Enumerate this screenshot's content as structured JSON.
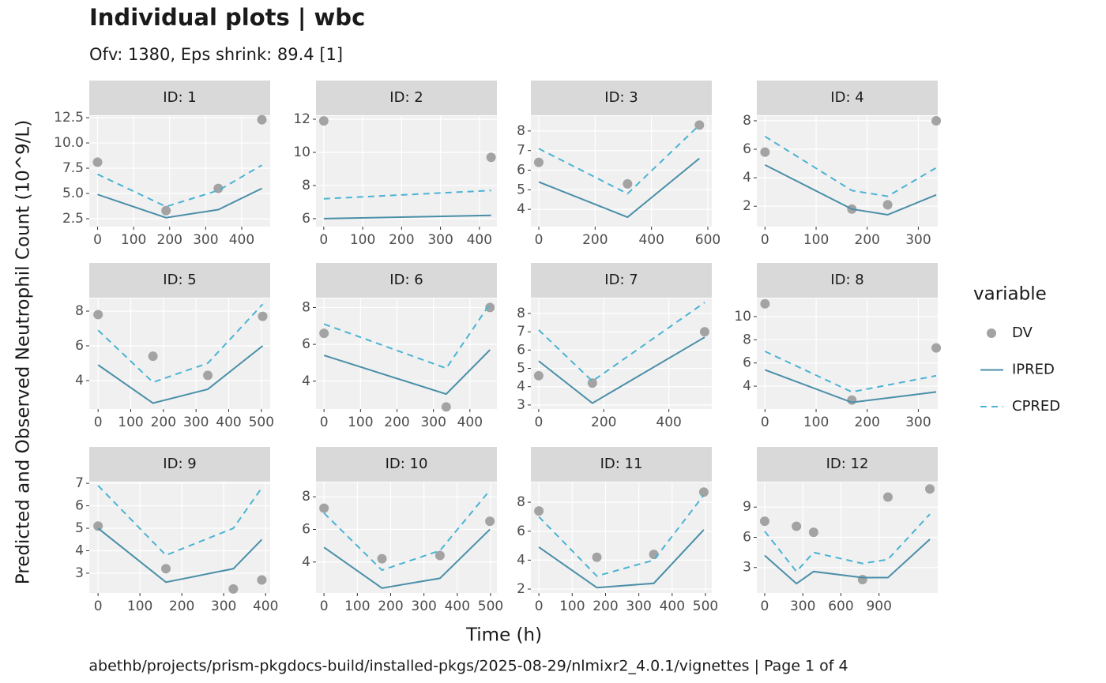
{
  "title": "Individual plots | wbc",
  "subtitle": "Ofv: 1380, Eps shrink: 89.4 [1]",
  "x_label": "Time (h)",
  "y_label": "Predicted and Observed Neutrophil Count (10^9/L)",
  "caption": "abethb/projects/prism-pkgdocs-build/installed-pkgs/2025-08-29/nlmixr2_4.0.1/vignettes | Page 1 of 4",
  "legend": {
    "title": "variable",
    "position": "right"
  },
  "chart_data": [
    {
      "type": "line",
      "title": "ID: 1",
      "grid": true,
      "x": [
        0,
        190,
        335,
        456
      ],
      "xlim": [
        -23,
        479
      ],
      "xticks": [
        0,
        100,
        200,
        300,
        400
      ],
      "ylim": [
        1.72,
        12.66
      ],
      "yticks": [
        2.5,
        {
          "value": 5,
          "label": "5.0"
        },
        7.5,
        {
          "value": 10,
          "label": "10.0"
        },
        12.5
      ],
      "series": [
        {
          "name": "DV",
          "color": "#a3a3a3",
          "style": "points",
          "values": [
            8.1,
            3.3,
            5.5,
            12.3
          ]
        },
        {
          "name": "IPRED",
          "color": "#4a8fa8",
          "style": "solid",
          "values": [
            4.9,
            2.6,
            3.4,
            5.5
          ]
        },
        {
          "name": "CPRED",
          "color": "#4ab3d4",
          "style": "dashed",
          "values": [
            6.9,
            3.7,
            5.3,
            7.8
          ]
        }
      ]
    },
    {
      "type": "line",
      "title": "ID: 2",
      "grid": true,
      "x": [
        0,
        430
      ],
      "xlim": [
        -20,
        445
      ],
      "xticks": [
        0,
        100,
        200,
        300,
        400
      ],
      "ylim": [
        5.52,
        12.19
      ],
      "yticks": [
        6,
        8,
        10,
        12
      ],
      "series": [
        {
          "name": "DV",
          "color": "#a3a3a3",
          "style": "points",
          "values": [
            11.9,
            9.7
          ]
        },
        {
          "name": "IPRED",
          "color": "#4a8fa8",
          "style": "solid",
          "values": [
            6.0,
            6.2
          ]
        },
        {
          "name": "CPRED",
          "color": "#4ab3d4",
          "style": "dashed",
          "values": [
            7.2,
            7.7
          ]
        }
      ]
    },
    {
      "type": "line",
      "title": "ID: 3",
      "grid": true,
      "x": [
        0,
        315,
        570
      ],
      "xlim": [
        -28,
        614
      ],
      "xticks": [
        0,
        200,
        400,
        600
      ],
      "ylim": [
        3.12,
        8.76
      ],
      "yticks": [
        4,
        5,
        6,
        7,
        8
      ],
      "series": [
        {
          "name": "DV",
          "color": "#a3a3a3",
          "style": "points",
          "values": [
            6.4,
            5.3,
            8.3
          ]
        },
        {
          "name": "IPRED",
          "color": "#4a8fa8",
          "style": "solid",
          "values": [
            5.4,
            3.6,
            6.6
          ]
        },
        {
          "name": "CPRED",
          "color": "#4ab3d4",
          "style": "dashed",
          "values": [
            7.1,
            4.8,
            8.3
          ]
        }
      ]
    },
    {
      "type": "line",
      "title": "ID: 4",
      "grid": true,
      "x": [
        0,
        170,
        240,
        335
      ],
      "xlim": [
        -16,
        338
      ],
      "xticks": [
        0,
        100,
        200,
        300
      ],
      "ylim": [
        0.57,
        8.33
      ],
      "yticks": [
        2,
        4,
        6,
        8
      ],
      "series": [
        {
          "name": "DV",
          "color": "#a3a3a3",
          "style": "points",
          "values": [
            5.8,
            1.8,
            2.1,
            8.0
          ]
        },
        {
          "name": "IPRED",
          "color": "#4a8fa8",
          "style": "solid",
          "values": [
            4.9,
            1.8,
            1.4,
            2.8
          ]
        },
        {
          "name": "CPRED",
          "color": "#4ab3d4",
          "style": "dashed",
          "values": [
            6.9,
            3.1,
            2.7,
            4.7
          ]
        }
      ]
    },
    {
      "type": "line",
      "title": "ID: 5",
      "grid": true,
      "x": [
        0,
        168,
        336,
        504
      ],
      "xlim": [
        -27,
        527
      ],
      "xticks": [
        0,
        100,
        200,
        300,
        400,
        500
      ],
      "ylim": [
        2.36,
        8.73
      ],
      "yticks": [
        4,
        6,
        8
      ],
      "series": [
        {
          "name": "DV",
          "color": "#a3a3a3",
          "style": "points",
          "values": [
            7.8,
            5.4,
            4.3,
            7.7
          ]
        },
        {
          "name": "IPRED",
          "color": "#4a8fa8",
          "style": "solid",
          "values": [
            4.9,
            2.7,
            3.5,
            6.0
          ]
        },
        {
          "name": "CPRED",
          "color": "#4ab3d4",
          "style": "dashed",
          "values": [
            6.9,
            3.9,
            5.0,
            8.4
          ]
        }
      ]
    },
    {
      "type": "line",
      "title": "ID: 6",
      "grid": true,
      "x": [
        0,
        335,
        455
      ],
      "xlim": [
        -22,
        474
      ],
      "xticks": [
        0,
        100,
        200,
        300,
        400
      ],
      "ylim": [
        2.49,
        8.49
      ],
      "yticks": [
        4,
        6,
        8
      ],
      "series": [
        {
          "name": "DV",
          "color": "#a3a3a3",
          "style": "points",
          "values": [
            6.6,
            2.6,
            8.0
          ]
        },
        {
          "name": "IPRED",
          "color": "#4a8fa8",
          "style": "solid",
          "values": [
            5.4,
            3.3,
            5.7
          ]
        },
        {
          "name": "CPRED",
          "color": "#4ab3d4",
          "style": "dashed",
          "values": [
            7.1,
            4.7,
            8.2
          ]
        }
      ]
    },
    {
      "type": "line",
      "title": "ID: 7",
      "grid": true,
      "x": [
        0,
        165,
        510
      ],
      "xlim": [
        -24,
        532
      ],
      "xticks": [
        0,
        200,
        400
      ],
      "ylim": [
        2.78,
        8.82
      ],
      "yticks": [
        3,
        4,
        5,
        6,
        7,
        8
      ],
      "series": [
        {
          "name": "DV",
          "color": "#a3a3a3",
          "style": "points",
          "values": [
            4.6,
            4.2,
            7.0
          ]
        },
        {
          "name": "IPRED",
          "color": "#4a8fa8",
          "style": "solid",
          "values": [
            5.4,
            3.1,
            6.7
          ]
        },
        {
          "name": "CPRED",
          "color": "#4ab3d4",
          "style": "dashed",
          "values": [
            7.1,
            4.3,
            8.6
          ]
        }
      ]
    },
    {
      "type": "line",
      "title": "ID: 8",
      "grid": true,
      "x": [
        0,
        170,
        335
      ],
      "xlim": [
        -16,
        338
      ],
      "xticks": [
        0,
        100,
        200,
        300
      ],
      "ylim": [
        2.03,
        11.56
      ],
      "yticks": [
        4,
        6,
        8,
        10
      ],
      "series": [
        {
          "name": "DV",
          "color": "#a3a3a3",
          "style": "points",
          "values": [
            11.1,
            2.8,
            7.3
          ]
        },
        {
          "name": "IPRED",
          "color": "#4a8fa8",
          "style": "solid",
          "values": [
            5.4,
            2.6,
            3.5
          ]
        },
        {
          "name": "CPRED",
          "color": "#4ab3d4",
          "style": "dashed",
          "values": [
            7.0,
            3.5,
            4.9
          ]
        }
      ]
    },
    {
      "type": "line",
      "title": "ID: 9",
      "grid": true,
      "x": [
        0,
        162,
        323,
        391
      ],
      "xlim": [
        -21,
        411
      ],
      "xticks": [
        0,
        100,
        200,
        300,
        400
      ],
      "ylim": [
        2.12,
        7.04
      ],
      "yticks": [
        3,
        4,
        5,
        6,
        7
      ],
      "series": [
        {
          "name": "DV",
          "color": "#a3a3a3",
          "style": "points",
          "values": [
            5.1,
            3.2,
            2.3,
            2.7
          ]
        },
        {
          "name": "IPRED",
          "color": "#4a8fa8",
          "style": "solid",
          "values": [
            5.0,
            2.6,
            3.2,
            4.5
          ]
        },
        {
          "name": "CPRED",
          "color": "#4ab3d4",
          "style": "dashed",
          "values": [
            6.9,
            3.8,
            5.0,
            6.8
          ]
        }
      ]
    },
    {
      "type": "line",
      "title": "ID: 10",
      "grid": true,
      "x": [
        0,
        174,
        348,
        498
      ],
      "xlim": [
        -24,
        519
      ],
      "xticks": [
        0,
        100,
        200,
        300,
        400,
        500
      ],
      "ylim": [
        2.1,
        8.88
      ],
      "yticks": [
        4,
        6,
        8
      ],
      "series": [
        {
          "name": "DV",
          "color": "#a3a3a3",
          "style": "points",
          "values": [
            7.3,
            4.2,
            4.4,
            6.5
          ]
        },
        {
          "name": "IPRED",
          "color": "#4a8fa8",
          "style": "solid",
          "values": [
            4.9,
            2.4,
            3.0,
            6.0
          ]
        },
        {
          "name": "CPRED",
          "color": "#4ab3d4",
          "style": "dashed",
          "values": [
            7.0,
            3.5,
            4.7,
            8.4
          ]
        }
      ]
    },
    {
      "type": "line",
      "title": "ID: 11",
      "grid": true,
      "x": [
        0,
        174,
        345,
        495
      ],
      "xlim": [
        -24,
        519
      ],
      "xticks": [
        0,
        100,
        200,
        300,
        400,
        500
      ],
      "ylim": [
        1.73,
        9.37
      ],
      "yticks": [
        2,
        4,
        6,
        8
      ],
      "series": [
        {
          "name": "DV",
          "color": "#a3a3a3",
          "style": "points",
          "values": [
            7.4,
            4.2,
            4.4,
            8.7
          ]
        },
        {
          "name": "IPRED",
          "color": "#4a8fa8",
          "style": "solid",
          "values": [
            4.9,
            2.1,
            2.4,
            6.1
          ]
        },
        {
          "name": "CPRED",
          "color": "#4ab3d4",
          "style": "dashed",
          "values": [
            7.0,
            2.9,
            4.0,
            8.5
          ]
        }
      ]
    },
    {
      "type": "line",
      "title": "ID: 12",
      "grid": true,
      "x": [
        0,
        250,
        385,
        770,
        970,
        1300
      ],
      "xlim": [
        -62,
        1362
      ],
      "xticks": [
        0,
        300,
        600,
        900
      ],
      "ylim": [
        0.47,
        11.45
      ],
      "yticks": [
        3,
        6,
        9
      ],
      "series": [
        {
          "name": "DV",
          "color": "#a3a3a3",
          "style": "points",
          "values": [
            7.6,
            7.1,
            6.5,
            1.8,
            10.0,
            10.8
          ]
        },
        {
          "name": "IPRED",
          "color": "#4a8fa8",
          "style": "solid",
          "values": [
            4.2,
            1.4,
            2.6,
            2.0,
            2.0,
            5.8
          ]
        },
        {
          "name": "CPRED",
          "color": "#4ab3d4",
          "style": "dashed",
          "values": [
            6.6,
            2.6,
            4.5,
            3.4,
            3.8,
            8.3
          ]
        }
      ]
    }
  ]
}
